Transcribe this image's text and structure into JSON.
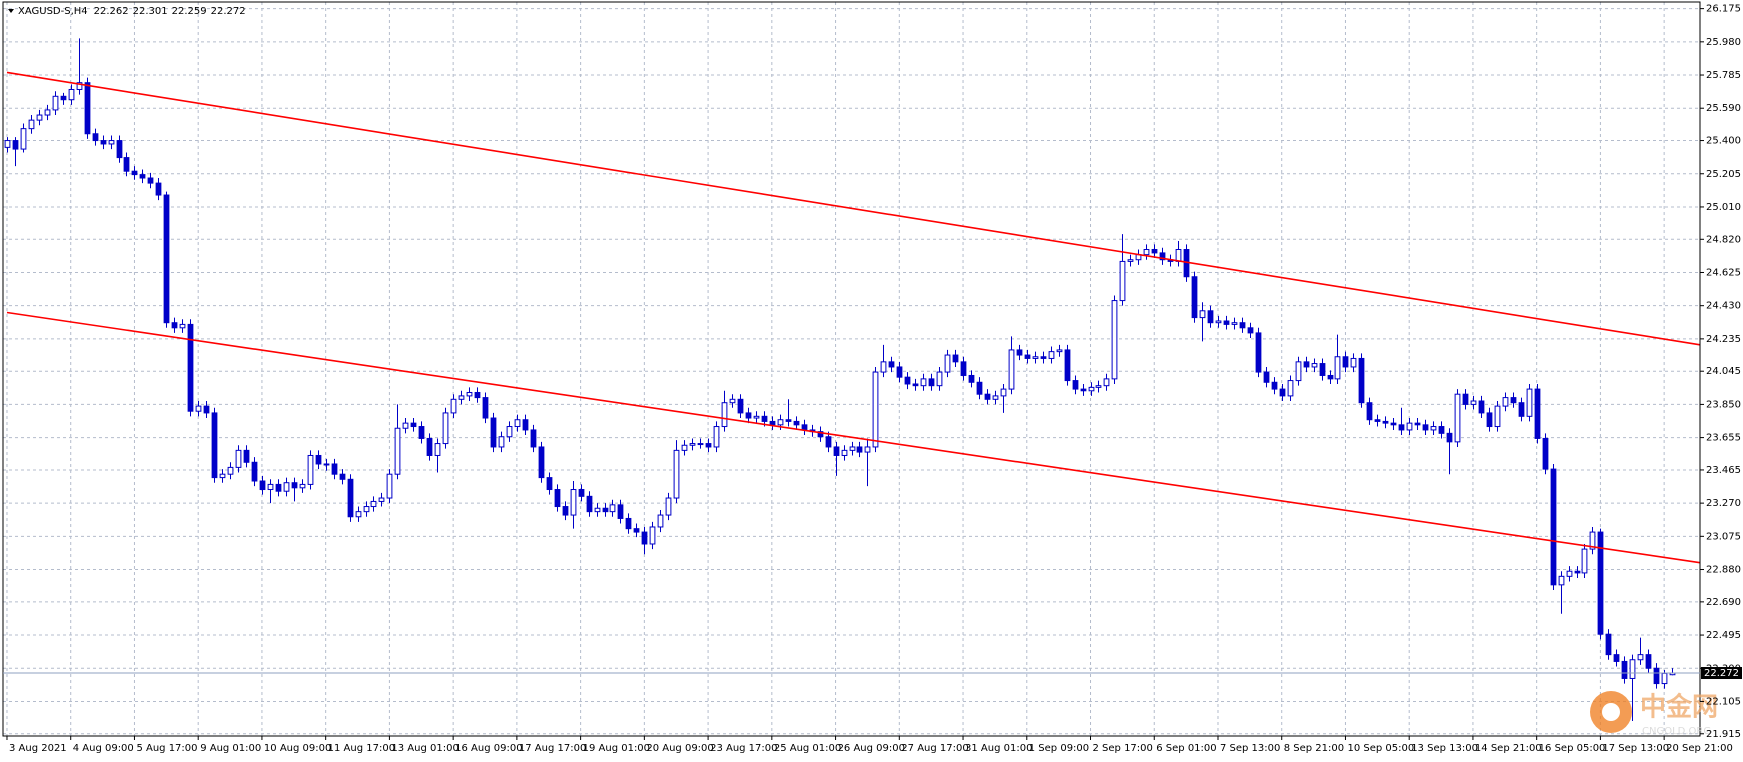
{
  "chart_data": {
    "type": "candlestick",
    "symbol": "XAGUSD-S,H4",
    "color": "#0000c8",
    "up_fill": "#ffffff",
    "grid": true,
    "xlim": [
      -0.5,
      212.5
    ],
    "ylim": [
      21.902,
      26.214
    ],
    "yticks": [
      26.175,
      {
        "value": 25.98,
        "label": "25.980"
      },
      25.785,
      {
        "value": 25.59,
        "label": "25.590"
      },
      {
        "value": 25.4,
        "label": "25.400"
      },
      25.205,
      {
        "value": 25.01,
        "label": "25.010"
      },
      {
        "value": 24.82,
        "label": "24.820"
      },
      24.625,
      {
        "value": 24.43,
        "label": "24.430"
      },
      24.235,
      24.045,
      {
        "value": 23.85,
        "label": "23.850"
      },
      23.655,
      23.465,
      {
        "value": 23.27,
        "label": "23.270"
      },
      23.075,
      {
        "value": 22.88,
        "label": "22.880"
      },
      {
        "value": 22.69,
        "label": "22.690"
      },
      22.495,
      {
        "value": 22.3,
        "label": "22.300"
      },
      22.105,
      21.915
    ],
    "xticks": [
      {
        "value": 0,
        "label": "3 Aug 2021"
      },
      {
        "value": 8,
        "label": "4 Aug 09:00"
      },
      {
        "value": 16,
        "label": "5 Aug 17:00"
      },
      {
        "value": 24,
        "label": "9 Aug 01:00"
      },
      {
        "value": 32,
        "label": "10 Aug 09:00"
      },
      {
        "value": 40,
        "label": "11 Aug 17:00"
      },
      {
        "value": 48,
        "label": "13 Aug 01:00"
      },
      {
        "value": 56,
        "label": "16 Aug 09:00"
      },
      {
        "value": 64,
        "label": "17 Aug 17:00"
      },
      {
        "value": 72,
        "label": "19 Aug 01:00"
      },
      {
        "value": 80,
        "label": "20 Aug 09:00"
      },
      {
        "value": 88,
        "label": "23 Aug 17:00"
      },
      {
        "value": 96,
        "label": "25 Aug 01:00"
      },
      {
        "value": 104,
        "label": "26 Aug 09:00"
      },
      {
        "value": 112,
        "label": "27 Aug 17:00"
      },
      {
        "value": 120,
        "label": "31 Aug 01:00"
      },
      {
        "value": 128,
        "label": "1 Sep 09:00"
      },
      {
        "value": 136,
        "label": "2 Sep 17:00"
      },
      {
        "value": 144,
        "label": "6 Sep 01:00"
      },
      {
        "value": 152,
        "label": "7 Sep 13:00"
      },
      {
        "value": 160,
        "label": "8 Sep 21:00"
      },
      {
        "value": 168,
        "label": "10 Sep 05:00"
      },
      {
        "value": 176,
        "label": "13 Sep 13:00"
      },
      {
        "value": 184,
        "label": "14 Sep 21:00"
      },
      {
        "value": 192,
        "label": "16 Sep 05:00"
      },
      {
        "value": 200,
        "label": "17 Sep 13:00"
      },
      {
        "value": 208,
        "label": "20 Sep 21:00"
      }
    ],
    "trendlines": [
      {
        "color": "#ff0000",
        "x": [
          0,
          212.5
        ],
        "y": [
          25.8,
          24.2
        ]
      },
      {
        "color": "#ff0000",
        "x": [
          0,
          212.5
        ],
        "y": [
          24.39,
          22.92
        ]
      }
    ],
    "watermark": {
      "text": "中金网",
      "sub": "CNGOLD.ORG"
    },
    "candles": [
      [
        25.36,
        25.42,
        25.33,
        25.4
      ],
      [
        25.4,
        25.42,
        25.25,
        25.35
      ],
      [
        25.35,
        25.5,
        25.33,
        25.47
      ],
      [
        25.47,
        25.55,
        25.44,
        25.52
      ],
      [
        25.52,
        25.58,
        25.49,
        25.55
      ],
      [
        25.55,
        25.61,
        25.52,
        25.58
      ],
      [
        25.58,
        25.69,
        25.55,
        25.66
      ],
      [
        25.66,
        25.68,
        25.61,
        25.64
      ],
      [
        25.64,
        25.73,
        25.61,
        25.7
      ],
      [
        25.7,
        26.0,
        25.67,
        25.74
      ],
      [
        25.74,
        25.77,
        25.41,
        25.44
      ],
      [
        25.44,
        25.47,
        25.37,
        25.4
      ],
      [
        25.4,
        25.43,
        25.35,
        25.38
      ],
      [
        25.38,
        25.43,
        25.35,
        25.4
      ],
      [
        25.4,
        25.43,
        25.27,
        25.3
      ],
      [
        25.3,
        25.33,
        25.19,
        25.22
      ],
      [
        25.22,
        25.25,
        25.17,
        25.2
      ],
      [
        25.2,
        25.23,
        25.15,
        25.18
      ],
      [
        25.18,
        25.21,
        25.12,
        25.15
      ],
      [
        25.15,
        25.18,
        25.05,
        25.08
      ],
      [
        25.08,
        25.1,
        24.3,
        24.33
      ],
      [
        24.33,
        24.36,
        24.27,
        24.3
      ],
      [
        24.3,
        24.35,
        24.27,
        24.32
      ],
      [
        24.32,
        24.35,
        23.78,
        23.81
      ],
      [
        23.81,
        23.87,
        23.78,
        23.84
      ],
      [
        23.84,
        23.87,
        23.77,
        23.8
      ],
      [
        23.8,
        23.83,
        23.39,
        23.42
      ],
      [
        23.42,
        23.47,
        23.39,
        23.44
      ],
      [
        23.44,
        23.51,
        23.41,
        23.48
      ],
      [
        23.48,
        23.61,
        23.45,
        23.58
      ],
      [
        23.58,
        23.61,
        23.48,
        23.51
      ],
      [
        23.51,
        23.54,
        23.37,
        23.4
      ],
      [
        23.4,
        23.43,
        23.32,
        23.35
      ],
      [
        23.35,
        23.41,
        23.27,
        23.38
      ],
      [
        23.38,
        23.41,
        23.31,
        23.34
      ],
      [
        23.34,
        23.42,
        23.31,
        23.39
      ],
      [
        23.39,
        23.42,
        23.28,
        23.36
      ],
      [
        23.36,
        23.41,
        23.33,
        23.38
      ],
      [
        23.38,
        23.58,
        23.35,
        23.55
      ],
      [
        23.55,
        23.58,
        23.47,
        23.5
      ],
      [
        23.5,
        23.53,
        23.46,
        23.5
      ],
      [
        23.5,
        23.53,
        23.41,
        23.44
      ],
      [
        23.44,
        23.47,
        23.38,
        23.41
      ],
      [
        23.41,
        23.44,
        23.16,
        23.19
      ],
      [
        23.19,
        23.25,
        23.16,
        23.22
      ],
      [
        23.22,
        23.28,
        23.19,
        23.25
      ],
      [
        23.25,
        23.31,
        23.22,
        23.28
      ],
      [
        23.28,
        23.33,
        23.25,
        23.3
      ],
      [
        23.3,
        23.47,
        23.27,
        23.44
      ],
      [
        23.44,
        23.85,
        23.41,
        23.71
      ],
      [
        23.71,
        23.77,
        23.68,
        23.74
      ],
      [
        23.74,
        23.77,
        23.69,
        23.72
      ],
      [
        23.72,
        23.75,
        23.62,
        23.65
      ],
      [
        23.65,
        23.68,
        23.52,
        23.55
      ],
      [
        23.55,
        23.65,
        23.45,
        23.62
      ],
      [
        23.62,
        23.83,
        23.59,
        23.8
      ],
      [
        23.8,
        23.91,
        23.77,
        23.88
      ],
      [
        23.88,
        23.93,
        23.85,
        23.9
      ],
      [
        23.9,
        23.95,
        23.87,
        23.92
      ],
      [
        23.92,
        23.95,
        23.86,
        23.89
      ],
      [
        23.89,
        23.92,
        23.74,
        23.77
      ],
      [
        23.77,
        23.8,
        23.57,
        23.6
      ],
      [
        23.6,
        23.69,
        23.57,
        23.66
      ],
      [
        23.66,
        23.75,
        23.63,
        23.72
      ],
      [
        23.72,
        23.79,
        23.69,
        23.76
      ],
      [
        23.76,
        23.79,
        23.67,
        23.7
      ],
      [
        23.7,
        23.73,
        23.57,
        23.6
      ],
      [
        23.6,
        23.63,
        23.39,
        23.42
      ],
      [
        23.42,
        23.45,
        23.32,
        23.35
      ],
      [
        23.35,
        23.38,
        23.22,
        23.25
      ],
      [
        23.25,
        23.28,
        23.17,
        23.2
      ],
      [
        23.2,
        23.4,
        23.12,
        23.35
      ],
      [
        23.35,
        23.38,
        23.28,
        23.31
      ],
      [
        23.31,
        23.34,
        23.19,
        23.22
      ],
      [
        23.22,
        23.27,
        23.19,
        23.24
      ],
      [
        23.24,
        23.27,
        23.19,
        23.22
      ],
      [
        23.22,
        23.29,
        23.19,
        23.26
      ],
      [
        23.26,
        23.29,
        23.15,
        23.18
      ],
      [
        23.18,
        23.21,
        23.09,
        23.12
      ],
      [
        23.12,
        23.15,
        23.07,
        23.1
      ],
      [
        23.1,
        23.13,
        22.97,
        23.03
      ],
      [
        23.03,
        23.16,
        23.0,
        23.13
      ],
      [
        23.13,
        23.23,
        23.1,
        23.2
      ],
      [
        23.2,
        23.33,
        23.17,
        23.3
      ],
      [
        23.3,
        23.64,
        23.27,
        23.58
      ],
      [
        23.58,
        23.64,
        23.55,
        23.61
      ],
      [
        23.61,
        23.65,
        23.58,
        23.62
      ],
      [
        23.62,
        23.65,
        23.59,
        23.62
      ],
      [
        23.62,
        23.65,
        23.57,
        23.6
      ],
      [
        23.6,
        23.75,
        23.57,
        23.72
      ],
      [
        23.72,
        23.93,
        23.69,
        23.86
      ],
      [
        23.86,
        23.91,
        23.83,
        23.88
      ],
      [
        23.88,
        23.91,
        23.77,
        23.8
      ],
      [
        23.8,
        23.83,
        23.74,
        23.77
      ],
      [
        23.77,
        23.81,
        23.74,
        23.78
      ],
      [
        23.78,
        23.81,
        23.72,
        23.75
      ],
      [
        23.75,
        23.78,
        23.7,
        23.73
      ],
      [
        23.73,
        23.79,
        23.7,
        23.76
      ],
      [
        23.76,
        23.88,
        23.72,
        23.75
      ],
      [
        23.75,
        23.78,
        23.7,
        23.73
      ],
      [
        23.73,
        23.76,
        23.67,
        23.7
      ],
      [
        23.7,
        23.73,
        23.66,
        23.69
      ],
      [
        23.69,
        23.72,
        23.63,
        23.66
      ],
      [
        23.66,
        23.69,
        23.57,
        23.6
      ],
      [
        23.6,
        23.63,
        23.43,
        23.55
      ],
      [
        23.55,
        23.61,
        23.52,
        23.58
      ],
      [
        23.58,
        23.63,
        23.55,
        23.6
      ],
      [
        23.6,
        23.63,
        23.54,
        23.57
      ],
      [
        23.57,
        23.65,
        23.37,
        23.6
      ],
      [
        23.6,
        24.07,
        23.57,
        24.04
      ],
      [
        24.04,
        24.2,
        24.01,
        24.1
      ],
      [
        24.1,
        24.13,
        24.04,
        24.07
      ],
      [
        24.07,
        24.1,
        23.98,
        24.01
      ],
      [
        24.01,
        24.04,
        23.94,
        23.97
      ],
      [
        23.97,
        24.0,
        23.93,
        23.96
      ],
      [
        23.96,
        24.03,
        23.93,
        24.0
      ],
      [
        24.0,
        24.03,
        23.93,
        23.96
      ],
      [
        23.96,
        24.07,
        23.93,
        24.04
      ],
      [
        24.04,
        24.17,
        24.01,
        24.14
      ],
      [
        24.14,
        24.17,
        24.07,
        24.1
      ],
      [
        24.1,
        24.13,
        23.99,
        24.02
      ],
      [
        24.02,
        24.05,
        23.95,
        23.98
      ],
      [
        23.98,
        24.01,
        23.88,
        23.91
      ],
      [
        23.91,
        23.94,
        23.85,
        23.88
      ],
      [
        23.88,
        23.93,
        23.85,
        23.9
      ],
      [
        23.9,
        23.97,
        23.8,
        23.94
      ],
      [
        23.94,
        24.25,
        23.91,
        24.17
      ],
      [
        24.17,
        24.2,
        24.11,
        24.14
      ],
      [
        24.14,
        24.17,
        24.09,
        24.12
      ],
      [
        24.12,
        24.16,
        24.09,
        24.13
      ],
      [
        24.13,
        24.16,
        24.09,
        24.12
      ],
      [
        24.12,
        24.19,
        24.09,
        24.16
      ],
      [
        24.16,
        24.2,
        24.13,
        24.17
      ],
      [
        24.17,
        24.2,
        23.96,
        23.99
      ],
      [
        23.99,
        24.02,
        23.91,
        23.94
      ],
      [
        23.94,
        23.97,
        23.9,
        23.93
      ],
      [
        23.93,
        23.98,
        23.9,
        23.95
      ],
      [
        23.95,
        23.99,
        23.92,
        23.96
      ],
      [
        23.96,
        24.03,
        23.93,
        24.0
      ],
      [
        24.0,
        24.49,
        23.97,
        24.46
      ],
      [
        24.46,
        24.85,
        24.43,
        24.69
      ],
      [
        24.69,
        24.73,
        24.66,
        24.7
      ],
      [
        24.7,
        24.76,
        24.67,
        24.73
      ],
      [
        24.73,
        24.79,
        24.7,
        24.76
      ],
      [
        24.76,
        24.79,
        24.71,
        24.74
      ],
      [
        24.74,
        24.77,
        24.67,
        24.7
      ],
      [
        24.7,
        24.73,
        24.66,
        24.69
      ],
      [
        24.69,
        24.81,
        24.66,
        24.76
      ],
      [
        24.76,
        24.79,
        24.57,
        24.6
      ],
      [
        24.6,
        24.63,
        24.33,
        24.36
      ],
      [
        24.36,
        24.45,
        24.22,
        24.4
      ],
      [
        24.4,
        24.43,
        24.3,
        24.33
      ],
      [
        24.33,
        24.37,
        24.3,
        24.34
      ],
      [
        24.34,
        24.37,
        24.29,
        24.32
      ],
      [
        24.32,
        24.36,
        24.29,
        24.33
      ],
      [
        24.33,
        24.36,
        24.27,
        24.3
      ],
      [
        24.3,
        24.33,
        24.24,
        24.27
      ],
      [
        24.27,
        24.3,
        24.01,
        24.04
      ],
      [
        24.04,
        24.07,
        23.95,
        23.98
      ],
      [
        23.98,
        24.01,
        23.91,
        23.94
      ],
      [
        23.94,
        23.97,
        23.87,
        23.9
      ],
      [
        23.9,
        24.02,
        23.87,
        23.99
      ],
      [
        23.99,
        24.13,
        23.96,
        24.1
      ],
      [
        24.1,
        24.13,
        24.04,
        24.07
      ],
      [
        24.07,
        24.12,
        24.04,
        24.09
      ],
      [
        24.09,
        24.12,
        23.99,
        24.02
      ],
      [
        24.02,
        24.05,
        23.97,
        24.0
      ],
      [
        24.0,
        24.26,
        23.97,
        24.13
      ],
      [
        24.13,
        24.16,
        24.04,
        24.07
      ],
      [
        24.07,
        24.15,
        24.04,
        24.12
      ],
      [
        24.12,
        24.15,
        23.83,
        23.86
      ],
      [
        23.86,
        23.89,
        23.73,
        23.76
      ],
      [
        23.76,
        23.79,
        23.72,
        23.75
      ],
      [
        23.75,
        23.78,
        23.71,
        23.74
      ],
      [
        23.74,
        23.77,
        23.7,
        23.73
      ],
      [
        23.73,
        23.83,
        23.67,
        23.7
      ],
      [
        23.7,
        23.77,
        23.67,
        23.74
      ],
      [
        23.74,
        23.77,
        23.7,
        23.73
      ],
      [
        23.73,
        23.76,
        23.67,
        23.7
      ],
      [
        23.7,
        23.75,
        23.67,
        23.72
      ],
      [
        23.72,
        23.75,
        23.65,
        23.68
      ],
      [
        23.68,
        23.71,
        23.44,
        23.63
      ],
      [
        23.63,
        23.94,
        23.6,
        23.91
      ],
      [
        23.91,
        23.94,
        23.82,
        23.85
      ],
      [
        23.85,
        23.9,
        23.82,
        23.87
      ],
      [
        23.87,
        23.9,
        23.77,
        23.8
      ],
      [
        23.8,
        23.83,
        23.69,
        23.72
      ],
      [
        23.72,
        23.87,
        23.69,
        23.84
      ],
      [
        23.84,
        23.92,
        23.81,
        23.89
      ],
      [
        23.89,
        23.92,
        23.83,
        23.86
      ],
      [
        23.86,
        23.89,
        23.75,
        23.78
      ],
      [
        23.78,
        23.97,
        23.75,
        23.94
      ],
      [
        23.94,
        23.97,
        23.62,
        23.65
      ],
      [
        23.65,
        23.68,
        23.44,
        23.47
      ],
      [
        23.47,
        23.5,
        22.76,
        22.79
      ],
      [
        22.79,
        22.87,
        22.62,
        22.84
      ],
      [
        22.84,
        22.9,
        22.81,
        22.87
      ],
      [
        22.87,
        22.9,
        22.83,
        22.86
      ],
      [
        22.86,
        23.03,
        22.83,
        23.0
      ],
      [
        23.0,
        23.13,
        22.97,
        23.1
      ],
      [
        23.1,
        23.12,
        22.47,
        22.5
      ],
      [
        22.5,
        22.53,
        22.35,
        22.38
      ],
      [
        22.38,
        22.41,
        22.31,
        22.34
      ],
      [
        22.34,
        22.37,
        22.21,
        22.24
      ],
      [
        22.24,
        22.38,
        21.99,
        22.35
      ],
      [
        22.35,
        22.48,
        22.32,
        22.38
      ],
      [
        22.38,
        22.41,
        22.27,
        22.3
      ],
      [
        22.3,
        22.33,
        22.18,
        22.21
      ],
      [
        22.21,
        22.29,
        22.18,
        22.27
      ],
      [
        22.262,
        22.301,
        22.259,
        22.272
      ]
    ]
  }
}
